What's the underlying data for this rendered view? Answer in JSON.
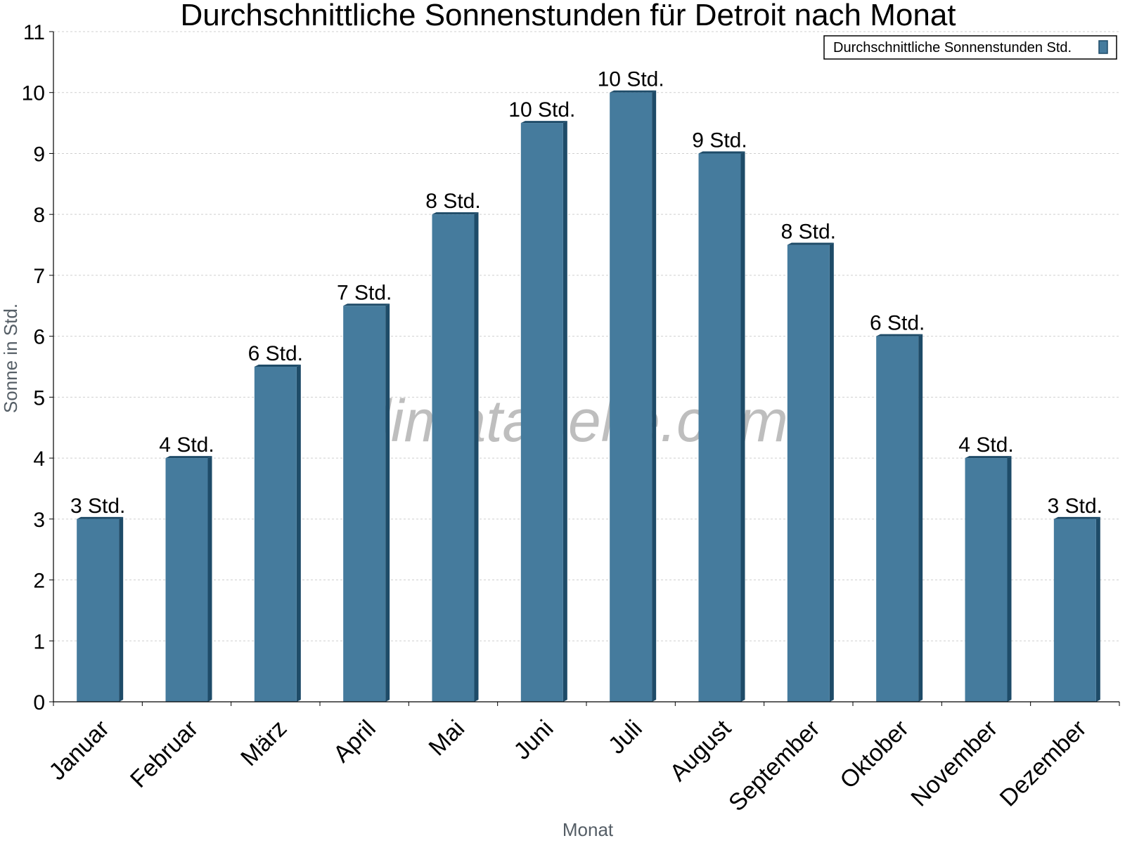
{
  "chart_data": {
    "type": "bar",
    "title": "Durchschnittliche Sonnenstunden für Detroit nach Monat",
    "xlabel": "Monat",
    "ylabel": "Sonne in Std.",
    "ylim": [
      0,
      11
    ],
    "yticks": [
      0,
      1,
      2,
      3,
      4,
      5,
      6,
      7,
      8,
      9,
      10,
      11
    ],
    "grid": true,
    "legend_position": "top-right",
    "categories": [
      "Januar",
      "Februar",
      "März",
      "April",
      "Mai",
      "Juni",
      "Juli",
      "August",
      "September",
      "Oktober",
      "November",
      "Dezember"
    ],
    "series": [
      {
        "name": "Durchschnittliche Sonnenstunden Std.",
        "color": "#457b9d",
        "values": [
          3,
          4,
          5.5,
          6.5,
          8,
          9.5,
          10,
          9,
          7.5,
          6,
          4,
          3
        ],
        "labels": [
          "3 Std.",
          "4 Std.",
          "6 Std.",
          "7 Std.",
          "8 Std.",
          "10 Std.",
          "10 Std.",
          "9 Std.",
          "8 Std.",
          "6 Std.",
          "4 Std.",
          "3 Std."
        ]
      }
    ]
  },
  "watermark": "klimatabelle.com",
  "colors": {
    "bar": "#457b9d",
    "bar_side": "#1e4b68",
    "grid": "#cfcfcf",
    "axis_label": "#555e66"
  }
}
